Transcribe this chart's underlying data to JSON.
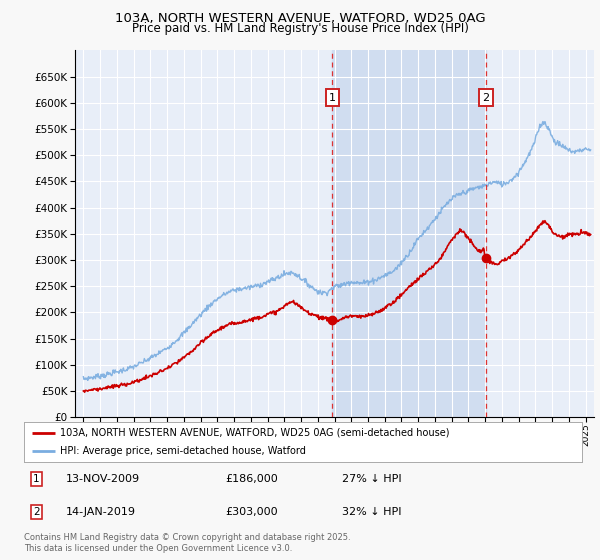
{
  "title": "103A, NORTH WESTERN AVENUE, WATFORD, WD25 0AG",
  "subtitle": "Price paid vs. HM Land Registry's House Price Index (HPI)",
  "ylim": [
    0,
    700000
  ],
  "yticks": [
    0,
    50000,
    100000,
    150000,
    200000,
    250000,
    300000,
    350000,
    400000,
    450000,
    500000,
    550000,
    600000,
    650000
  ],
  "xlim_start": 1994.5,
  "xlim_end": 2025.5,
  "background_color": "#f8f8f8",
  "plot_bg_color": "#e8eef8",
  "grid_color": "#ffffff",
  "shade_color": "#d0ddf0",
  "marker1_x": 2009.87,
  "marker1_y": 186000,
  "marker1_label": "1",
  "marker1_date": "13-NOV-2009",
  "marker1_price": "£186,000",
  "marker1_hpi": "27% ↓ HPI",
  "marker2_x": 2019.04,
  "marker2_y": 303000,
  "marker2_label": "2",
  "marker2_date": "14-JAN-2019",
  "marker2_price": "£303,000",
  "marker2_hpi": "32% ↓ HPI",
  "legend_label_red": "103A, NORTH WESTERN AVENUE, WATFORD, WD25 0AG (semi-detached house)",
  "legend_label_blue": "HPI: Average price, semi-detached house, Watford",
  "footer": "Contains HM Land Registry data © Crown copyright and database right 2025.\nThis data is licensed under the Open Government Licence v3.0.",
  "red_color": "#cc0000",
  "blue_color": "#7aade0"
}
